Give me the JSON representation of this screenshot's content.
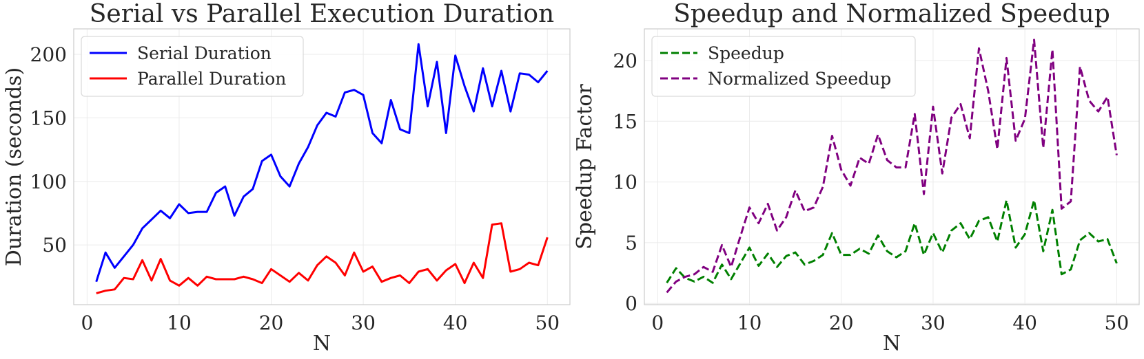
{
  "chart_data": [
    {
      "type": "line",
      "title": "Serial vs Parallel Execution Duration",
      "xlabel": "N",
      "ylabel": "Duration (seconds)",
      "xlim": [
        -1.45,
        52.45
      ],
      "ylim": [
        3,
        220
      ],
      "xticks": [
        0,
        10,
        20,
        30,
        40,
        50
      ],
      "yticks": [
        50,
        100,
        150,
        200
      ],
      "grid": true,
      "legend_position": "top-left",
      "x": [
        1,
        2,
        3,
        4,
        5,
        6,
        7,
        8,
        9,
        10,
        11,
        12,
        13,
        14,
        15,
        16,
        17,
        18,
        19,
        20,
        21,
        22,
        23,
        24,
        25,
        26,
        27,
        28,
        29,
        30,
        31,
        32,
        33,
        34,
        35,
        36,
        37,
        38,
        39,
        40,
        41,
        42,
        43,
        44,
        45,
        46,
        47,
        48,
        49,
        50
      ],
      "series": [
        {
          "name": "Serial Duration",
          "color": "#0000ff",
          "dash": "solid",
          "values": [
            21,
            44,
            32,
            41,
            50,
            63,
            70,
            77,
            71,
            82,
            75,
            76,
            76,
            91,
            96,
            73,
            88,
            94,
            116,
            121,
            104,
            96,
            114,
            127,
            144,
            154,
            151,
            170,
            172,
            168,
            138,
            130,
            164,
            141,
            138,
            208,
            159,
            194,
            138,
            199,
            175,
            155,
            189,
            159,
            187,
            155,
            185,
            184,
            178,
            187
          ]
        },
        {
          "name": "Parallel Duration",
          "color": "#ff0000",
          "dash": "solid",
          "values": [
            12,
            14,
            15,
            24,
            23,
            38,
            22,
            39,
            22,
            18,
            24,
            18,
            25,
            23,
            23,
            23,
            25,
            23,
            20,
            31,
            26,
            21,
            28,
            22,
            34,
            41,
            36,
            26,
            44,
            29,
            33,
            21,
            24,
            26,
            20,
            29,
            31,
            22,
            30,
            35,
            20,
            36,
            24,
            66,
            67,
            29,
            31,
            36,
            34,
            56
          ]
        }
      ]
    },
    {
      "type": "line",
      "title": "Speedup and Normalized Speedup",
      "xlabel": "N",
      "ylabel": "Speedup Factor",
      "xlim": [
        -1.45,
        52.45
      ],
      "ylim": [
        -0.1,
        22.6
      ],
      "xticks": [
        0,
        10,
        20,
        30,
        40,
        50
      ],
      "yticks": [
        0,
        5,
        10,
        15,
        20
      ],
      "grid": true,
      "legend_position": "top-left",
      "x": [
        1,
        2,
        3,
        4,
        5,
        6,
        7,
        8,
        9,
        10,
        11,
        12,
        13,
        14,
        15,
        16,
        17,
        18,
        19,
        20,
        21,
        22,
        23,
        24,
        25,
        26,
        27,
        28,
        29,
        30,
        31,
        32,
        33,
        34,
        35,
        36,
        37,
        38,
        39,
        40,
        41,
        42,
        43,
        44,
        45,
        46,
        47,
        48,
        49,
        50
      ],
      "series": [
        {
          "name": "Speedup",
          "color": "#008000",
          "dash": "dashed",
          "values": [
            1.7,
            2.9,
            2.1,
            1.8,
            2.2,
            1.7,
            3.2,
            2.0,
            3.3,
            4.6,
            3.1,
            4.1,
            3.0,
            3.9,
            4.2,
            3.2,
            3.5,
            4.0,
            5.8,
            4.0,
            4.0,
            4.5,
            4.1,
            5.6,
            4.3,
            3.8,
            4.3,
            6.6,
            4.0,
            5.8,
            4.2,
            6.0,
            6.6,
            5.3,
            6.8,
            7.1,
            5.1,
            8.5,
            4.6,
            5.7,
            8.5,
            4.3,
            7.7,
            2.4,
            2.8,
            5.2,
            5.8,
            5.1,
            5.3,
            3.3
          ]
        },
        {
          "name": "Normalized Speedup",
          "color": "#800080",
          "dash": "dashed",
          "values": [
            0.9,
            1.8,
            2.2,
            2.4,
            3.0,
            2.6,
            4.8,
            3.0,
            5.5,
            7.9,
            6.6,
            8.2,
            6.0,
            7.1,
            9.3,
            7.6,
            7.9,
            9.6,
            13.8,
            11.0,
            9.7,
            12.0,
            11.5,
            13.9,
            11.8,
            11.2,
            11.2,
            15.6,
            9.0,
            16.2,
            10.7,
            15.3,
            16.4,
            13.6,
            21.0,
            17.5,
            12.7,
            20.2,
            13.4,
            15.2,
            21.7,
            12.8,
            20.9,
            7.8,
            8.4,
            19.5,
            16.7,
            15.8,
            17.0,
            12.2
          ]
        }
      ]
    }
  ]
}
